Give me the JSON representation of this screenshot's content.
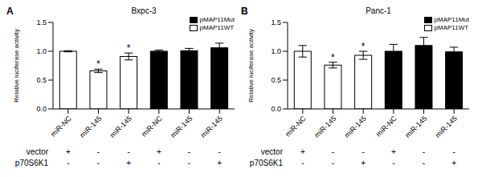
{
  "chart_data": [
    {
      "type": "bar",
      "panel_label": "A",
      "title": "Bxpc-3",
      "y_label": "Relative luciferase activity",
      "categories": [
        "miR-NC",
        "miR-145",
        "miR-145",
        "miR-NC",
        "miR-145",
        "miR-145"
      ],
      "series": [
        {
          "name": "pMAP11WT",
          "color": "#ffffff",
          "values": [
            1.0,
            0.66,
            0.91,
            null,
            null,
            null
          ],
          "errors": [
            0.01,
            0.03,
            0.06,
            null,
            null,
            null
          ]
        },
        {
          "name": "pMAP11Mut",
          "color": "#000000",
          "values": [
            null,
            null,
            null,
            1.0,
            1.01,
            1.06
          ],
          "errors": [
            null,
            null,
            null,
            0.02,
            0.04,
            0.08
          ]
        }
      ],
      "significance": [
        null,
        "*",
        "*",
        null,
        null,
        null
      ],
      "ylim": [
        0,
        1.5
      ],
      "yticks": [
        {
          "value": 0,
          "label": "0.0"
        },
        {
          "value": 0.5,
          "label": "0.5"
        },
        {
          "value": 1,
          "label": "1.0"
        },
        {
          "value": 1.5,
          "label": "1.5"
        }
      ],
      "legend": "upper right",
      "conditions": [
        {
          "label": "vector",
          "values": [
            "+",
            "-",
            "-",
            "+",
            "-",
            "-"
          ]
        },
        {
          "label": "p70S6K1",
          "values": [
            "-",
            "-",
            "+",
            "-",
            "-",
            "+"
          ]
        }
      ]
    },
    {
      "type": "bar",
      "panel_label": "B",
      "title": "Panc-1",
      "y_label": "Relative luciferase activity",
      "categories": [
        "miR-NC",
        "miR-145",
        "miR-145",
        "miR-NC",
        "miR-145",
        "miR-145"
      ],
      "series": [
        {
          "name": "pMAP11WT",
          "color": "#ffffff",
          "values": [
            1.0,
            0.76,
            0.93,
            null,
            null,
            null
          ],
          "errors": [
            0.1,
            0.05,
            0.07,
            null,
            null,
            null
          ]
        },
        {
          "name": "pMAP11Mut",
          "color": "#000000",
          "values": [
            null,
            null,
            null,
            1.0,
            1.1,
            0.99
          ],
          "errors": [
            null,
            null,
            null,
            0.12,
            0.14,
            0.08
          ]
        }
      ],
      "significance": [
        null,
        "*",
        "*",
        null,
        null,
        null
      ],
      "ylim": [
        0,
        1.5
      ],
      "yticks": [
        {
          "value": 0,
          "label": "0.0"
        },
        {
          "value": 0.5,
          "label": "0.5"
        },
        {
          "value": 1,
          "label": "1.0"
        },
        {
          "value": 1.5,
          "label": "1.5"
        }
      ],
      "legend": "upper right",
      "conditions": [
        {
          "label": "vector",
          "values": [
            "+",
            "-",
            "-",
            "+",
            "-",
            "-"
          ]
        },
        {
          "label": "p70S6K1",
          "values": [
            "-",
            "-",
            "+",
            "-",
            "-",
            "+"
          ]
        }
      ]
    }
  ]
}
